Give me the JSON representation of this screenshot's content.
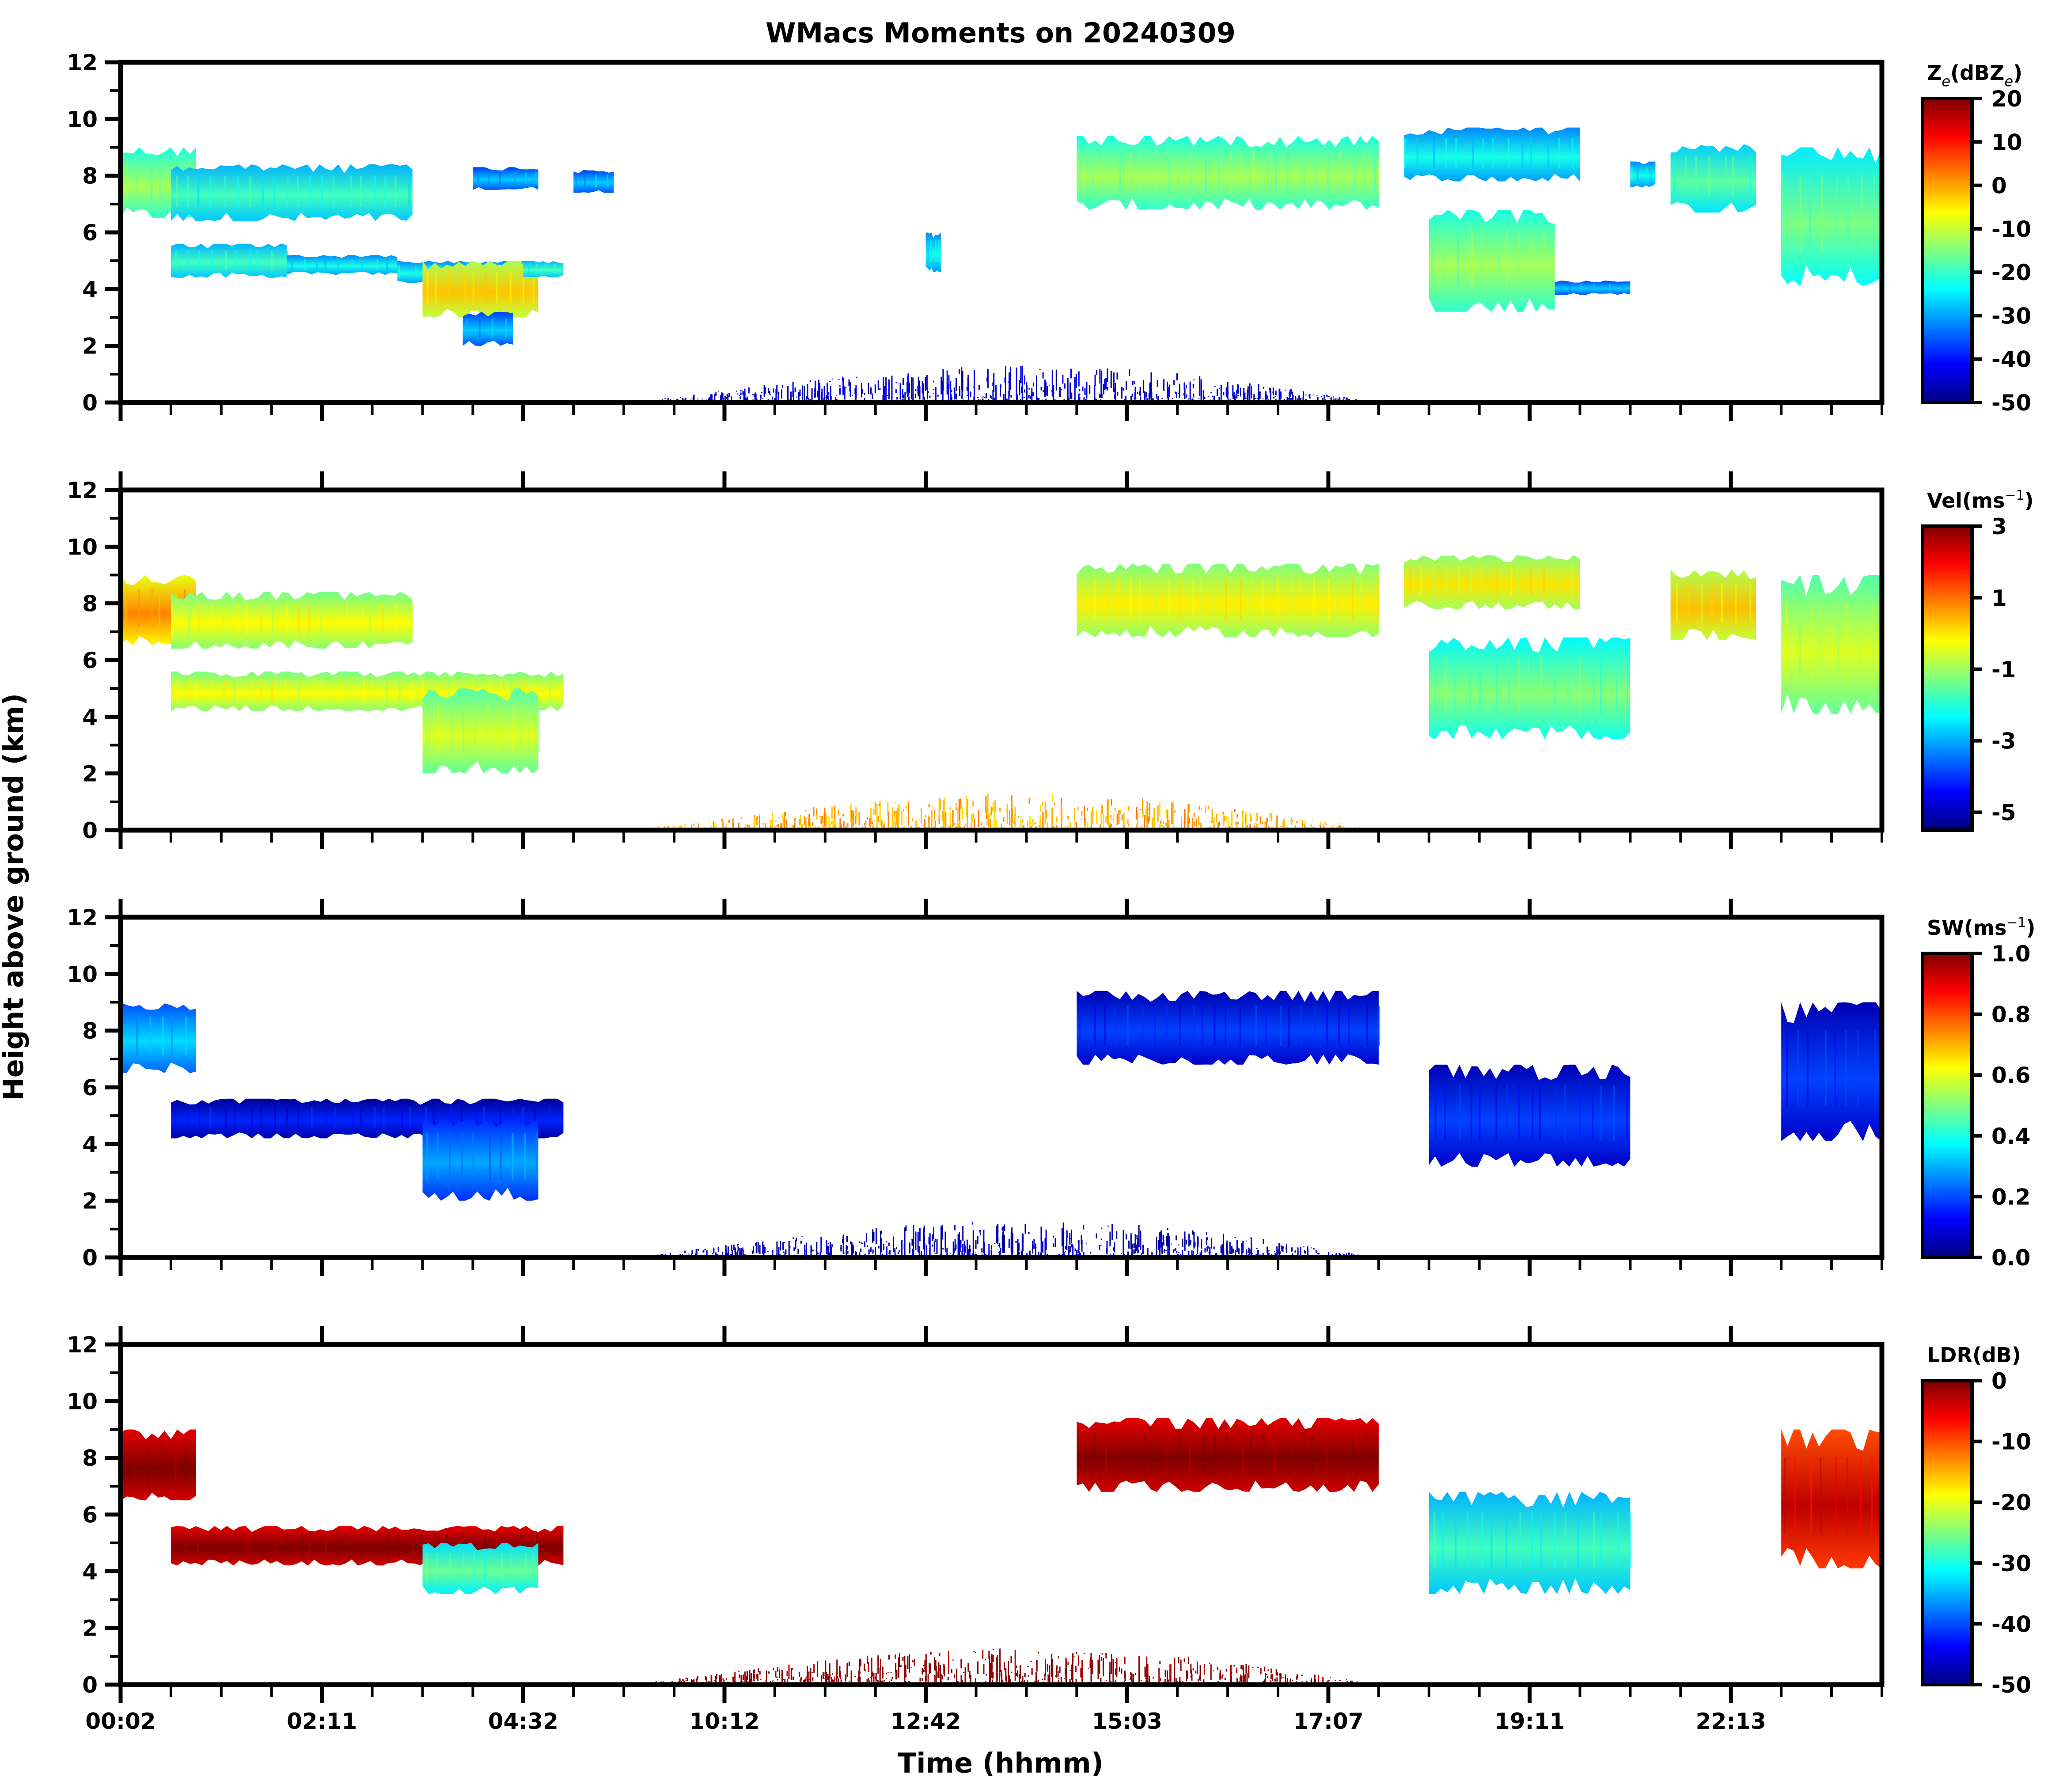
{
  "chart_data": {
    "type": "heatmap",
    "title": "WMacs Moments on 20240309",
    "xlabel": "Time (hhmm)",
    "ylabel": "Height above ground (km)",
    "x_tick_labels": [
      "00:02",
      "02:11",
      "04:32",
      "10:12",
      "12:42",
      "15:03",
      "17:07",
      "19:11",
      "22:13"
    ],
    "x_index_range": [
      0,
      35
    ],
    "x_major_tick_step": 4,
    "x_minor_tick_step": 1,
    "ylim": [
      0,
      12
    ],
    "y_ticks": [
      0,
      2,
      4,
      6,
      8,
      10,
      12
    ],
    "y_minor_ticks": [
      1,
      3,
      5,
      7,
      9,
      11
    ],
    "colormap": "jet",
    "jet_stops": [
      "#00007f",
      "#0000ff",
      "#007fff",
      "#00ffff",
      "#7fff7f",
      "#ffff00",
      "#ff7f00",
      "#ff0000",
      "#7f0000"
    ],
    "panels": [
      {
        "name": "reflectivity",
        "colorbar_label": "Ze(dBZe)",
        "colorbar_label_parts": [
          "Z",
          "e",
          "(dBZ",
          "e",
          ")"
        ],
        "clim": [
          -50,
          20
        ],
        "colorbar_ticks": [
          20,
          10,
          0,
          -10,
          -20,
          -30,
          -40,
          -50
        ],
        "echoes": [
          {
            "x": [
              0,
              1.5
            ],
            "y": [
              6.5,
              9.0
            ],
            "value": -15
          },
          {
            "x": [
              1.0,
              5.8
            ],
            "y": [
              6.4,
              8.4
            ],
            "value": -22
          },
          {
            "x": [
              1.0,
              3.3
            ],
            "y": [
              4.4,
              5.6
            ],
            "value": -22
          },
          {
            "x": [
              3.3,
              5.5
            ],
            "y": [
              4.5,
              5.2
            ],
            "value": -25
          },
          {
            "x": [
              5.5,
              8.0
            ],
            "y": [
              4.2,
              5.0
            ],
            "value": -25
          },
          {
            "x": [
              6.0,
              8.3
            ],
            "y": [
              3.0,
              5.0
            ],
            "value": -5
          },
          {
            "x": [
              6.8,
              7.8
            ],
            "y": [
              2.0,
              3.2
            ],
            "value": -30
          },
          {
            "x": [
              8.0,
              8.8
            ],
            "y": [
              4.4,
              5.0
            ],
            "value": -22
          },
          {
            "x": [
              7.0,
              8.3
            ],
            "y": [
              7.5,
              8.3
            ],
            "value": -30
          },
          {
            "x": [
              9.0,
              9.8
            ],
            "y": [
              7.4,
              8.2
            ],
            "value": -30
          },
          {
            "x": [
              16.0,
              16.3
            ],
            "y": [
              4.6,
              6.0
            ],
            "value": -25
          },
          {
            "x": [
              19.0,
              25.0
            ],
            "y": [
              6.8,
              9.4
            ],
            "value": -15
          },
          {
            "x": [
              25.5,
              29.0
            ],
            "y": [
              7.8,
              9.7
            ],
            "value": -25
          },
          {
            "x": [
              26.0,
              28.5
            ],
            "y": [
              3.2,
              6.8
            ],
            "value": -15
          },
          {
            "x": [
              28.5,
              30.0
            ],
            "y": [
              3.8,
              4.3
            ],
            "value": -30
          },
          {
            "x": [
              30.0,
              30.5
            ],
            "y": [
              7.6,
              8.5
            ],
            "value": -25
          },
          {
            "x": [
              30.8,
              32.5
            ],
            "y": [
              6.7,
              9.2
            ],
            "value": -20
          },
          {
            "x": [
              33.0,
              35.0
            ],
            "y": [
              4.1,
              9.0
            ],
            "value": -18
          },
          {
            "x": [
              10.0,
              25.0
            ],
            "y": [
              0,
              1.3
            ],
            "value": -45
          }
        ]
      },
      {
        "name": "velocity",
        "colorbar_label": "Vel(ms-1)",
        "colorbar_label_parts": [
          "Vel(ms",
          "−1",
          ")"
        ],
        "clim": [
          -5.5,
          3
        ],
        "colorbar_ticks": [
          3,
          1,
          -1,
          -3,
          -5
        ],
        "echoes": [
          {
            "x": [
              0,
              1.5
            ],
            "y": [
              6.5,
              9.0
            ],
            "value": 0.5
          },
          {
            "x": [
              1.0,
              5.8
            ],
            "y": [
              6.4,
              8.4
            ],
            "value": -0.5
          },
          {
            "x": [
              1.0,
              8.8
            ],
            "y": [
              4.2,
              5.6
            ],
            "value": -0.5
          },
          {
            "x": [
              6.0,
              8.3
            ],
            "y": [
              2.0,
              5.0
            ],
            "value": -0.8
          },
          {
            "x": [
              19.0,
              25.0
            ],
            "y": [
              6.8,
              9.4
            ],
            "value": -0.4
          },
          {
            "x": [
              25.5,
              29.0
            ],
            "y": [
              7.8,
              9.7
            ],
            "value": -0.3
          },
          {
            "x": [
              26.0,
              30.0
            ],
            "y": [
              3.2,
              6.8
            ],
            "value": -1.5
          },
          {
            "x": [
              30.8,
              32.5
            ],
            "y": [
              6.7,
              9.2
            ],
            "value": 0.0
          },
          {
            "x": [
              33.0,
              35.0
            ],
            "y": [
              4.1,
              9.0
            ],
            "value": -0.8
          },
          {
            "x": [
              10.0,
              25.0
            ],
            "y": [
              0,
              1.3
            ],
            "value": 0.5
          }
        ]
      },
      {
        "name": "spectrum_width",
        "colorbar_label": "SW(ms-1)",
        "colorbar_label_parts": [
          "SW(ms",
          "−1",
          ")"
        ],
        "clim": [
          0.0,
          1.0
        ],
        "colorbar_ticks": [
          "1.0",
          "0.8",
          "0.6",
          "0.4",
          "0.2",
          "0.0"
        ],
        "echoes": [
          {
            "x": [
              0,
              1.5
            ],
            "y": [
              6.5,
              9.0
            ],
            "value": 0.3
          },
          {
            "x": [
              1.0,
              8.8
            ],
            "y": [
              4.2,
              5.6
            ],
            "value": 0.12
          },
          {
            "x": [
              6.0,
              8.3
            ],
            "y": [
              2.0,
              5.0
            ],
            "value": 0.25
          },
          {
            "x": [
              19.0,
              25.0
            ],
            "y": [
              6.8,
              9.4
            ],
            "value": 0.15
          },
          {
            "x": [
              26.0,
              30.0
            ],
            "y": [
              3.2,
              6.8
            ],
            "value": 0.15
          },
          {
            "x": [
              33.0,
              35.0
            ],
            "y": [
              4.1,
              9.0
            ],
            "value": 0.15
          },
          {
            "x": [
              10.0,
              25.0
            ],
            "y": [
              0,
              1.3
            ],
            "value": 0.05
          }
        ]
      },
      {
        "name": "ldr",
        "colorbar_label": "LDR(dB)",
        "colorbar_label_parts": [
          "LDR(dB)"
        ],
        "clim": [
          -50,
          0
        ],
        "colorbar_ticks": [
          0,
          -10,
          -20,
          -30,
          -40,
          -50
        ],
        "echoes": [
          {
            "x": [
              0,
              1.5
            ],
            "y": [
              6.5,
              9.0
            ],
            "value": 0
          },
          {
            "x": [
              1.0,
              8.8
            ],
            "y": [
              4.2,
              5.6
            ],
            "value": 0
          },
          {
            "x": [
              6.0,
              8.3
            ],
            "y": [
              3.2,
              5.0
            ],
            "value": -28
          },
          {
            "x": [
              19.0,
              25.0
            ],
            "y": [
              6.8,
              9.4
            ],
            "value": 0
          },
          {
            "x": [
              26.0,
              30.0
            ],
            "y": [
              3.2,
              6.8
            ],
            "value": -30
          },
          {
            "x": [
              33.0,
              35.0
            ],
            "y": [
              4.1,
              9.0
            ],
            "value": -5
          },
          {
            "x": [
              10.0,
              25.0
            ],
            "y": [
              0,
              1.3
            ],
            "value": 0
          }
        ]
      }
    ]
  }
}
